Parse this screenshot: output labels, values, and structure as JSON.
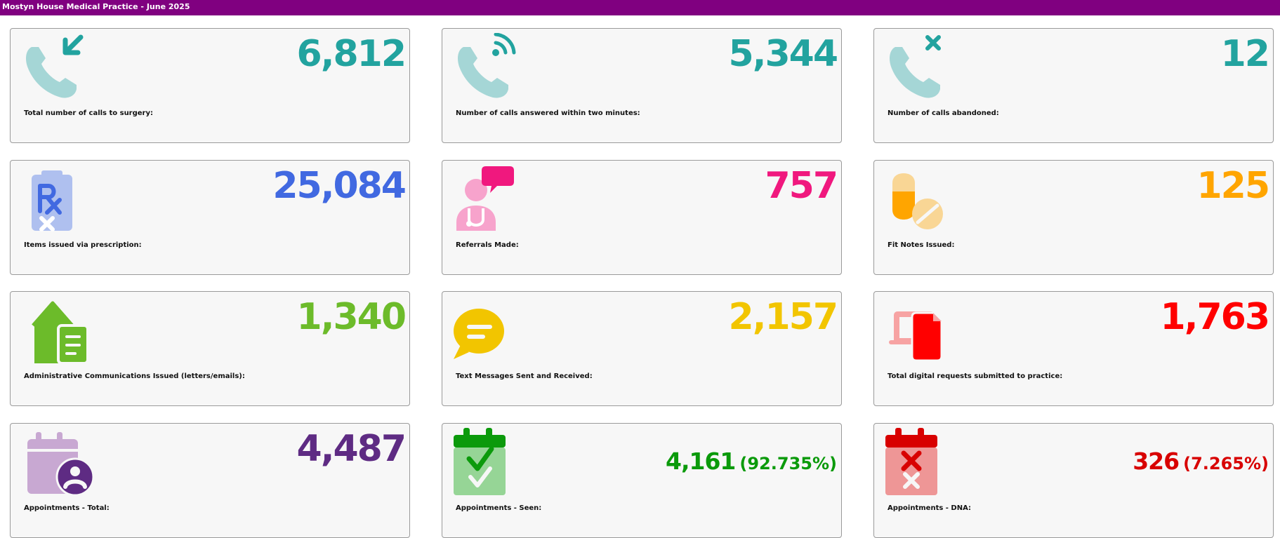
{
  "header": {
    "title": "Mostyn House Medical Practice - June 2025"
  },
  "colors": {
    "header_bg": "#800080",
    "teal": "#22A39F",
    "blue": "#4169E1",
    "pink": "#F0187E",
    "orange": "#FFA500",
    "green": "#6CBB2A",
    "yellow": "#F2C500",
    "red": "#FF0000",
    "purple": "#5E2B83",
    "dark_green": "#0B9A0B",
    "dark_red": "#D80000"
  },
  "cards": [
    {
      "label": "Total number of calls to surgery:",
      "value": "6,812",
      "icon": "phone-incoming-icon"
    },
    {
      "label": "Number of calls answered within two minutes:",
      "value": "5,344",
      "icon": "phone-answered-icon"
    },
    {
      "label": "Number of calls abandoned:",
      "value": "12",
      "icon": "phone-missed-icon"
    },
    {
      "label": "Items issued via prescription:",
      "value": "25,084",
      "icon": "prescription-icon"
    },
    {
      "label": "Referrals Made:",
      "value": "757",
      "icon": "doctor-referral-icon"
    },
    {
      "label": "Fit Notes Issued:",
      "value": "125",
      "icon": "pills-icon"
    },
    {
      "label": "Administrative Communications Issued (letters/emails):",
      "value": "1,340",
      "icon": "house-letter-icon"
    },
    {
      "label": "Text Messages Sent and Received:",
      "value": "2,157",
      "icon": "chat-bubble-icon"
    },
    {
      "label": "Total digital requests submitted to practice:",
      "value": "1,763",
      "icon": "digital-document-icon"
    },
    {
      "label": "Appointments - Total:",
      "value": "4,487",
      "icon": "calendar-user-icon"
    },
    {
      "label": "Appointments - Seen:",
      "value": "4,161",
      "pct": "(92.735%)",
      "icon": "calendar-check-icon"
    },
    {
      "label": "Appointments - DNA:",
      "value": "326",
      "pct": "(7.265%)",
      "icon": "calendar-cross-icon"
    }
  ]
}
